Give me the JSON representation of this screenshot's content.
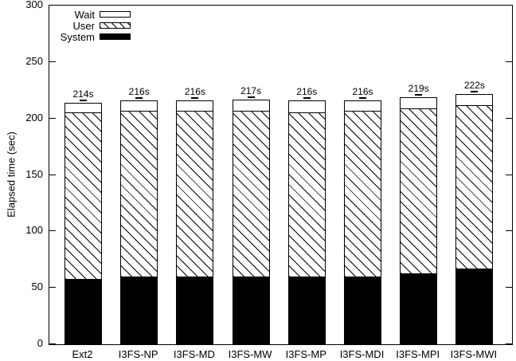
{
  "chart_data": {
    "type": "bar",
    "stacked": true,
    "title": "",
    "ylabel": "Elapsed time (sec)",
    "xlabel": "",
    "ylim": [
      0,
      300
    ],
    "yticks": [
      0,
      50,
      100,
      150,
      200,
      250,
      300
    ],
    "grid": false,
    "legend_position": "top-left-inside",
    "legend_items": [
      {
        "label": "Wait",
        "fill": "white"
      },
      {
        "label": "User",
        "fill": "diagonal-hatch"
      },
      {
        "label": "System",
        "fill": "solid-black"
      }
    ],
    "categories": [
      "Ext2",
      "I3FS-NP",
      "I3FS-MD",
      "I3FS-MW",
      "I3FS-MP",
      "I3FS-MDI",
      "I3FS-MPI",
      "I3FS-MWI"
    ],
    "series": [
      {
        "name": "System",
        "fill": "solid-black",
        "values": [
          57,
          59,
          59,
          59,
          59,
          59,
          62,
          66
        ]
      },
      {
        "name": "User",
        "fill": "diagonal-hatch",
        "values": [
          148,
          147,
          147,
          147,
          146,
          147,
          146,
          145
        ]
      },
      {
        "name": "Wait",
        "fill": "white",
        "values": [
          9,
          10,
          10,
          11,
          11,
          10,
          11,
          11
        ]
      }
    ],
    "totals_sec": [
      214,
      216,
      216,
      217,
      216,
      216,
      219,
      222
    ],
    "bar_total_labels": [
      "214s",
      "216s",
      "216s",
      "217s",
      "216s",
      "216s",
      "219s",
      "222s"
    ],
    "error_marks_at_bar_tops": true,
    "colors": {
      "foreground": "#000000",
      "background": "#ffffff"
    }
  }
}
